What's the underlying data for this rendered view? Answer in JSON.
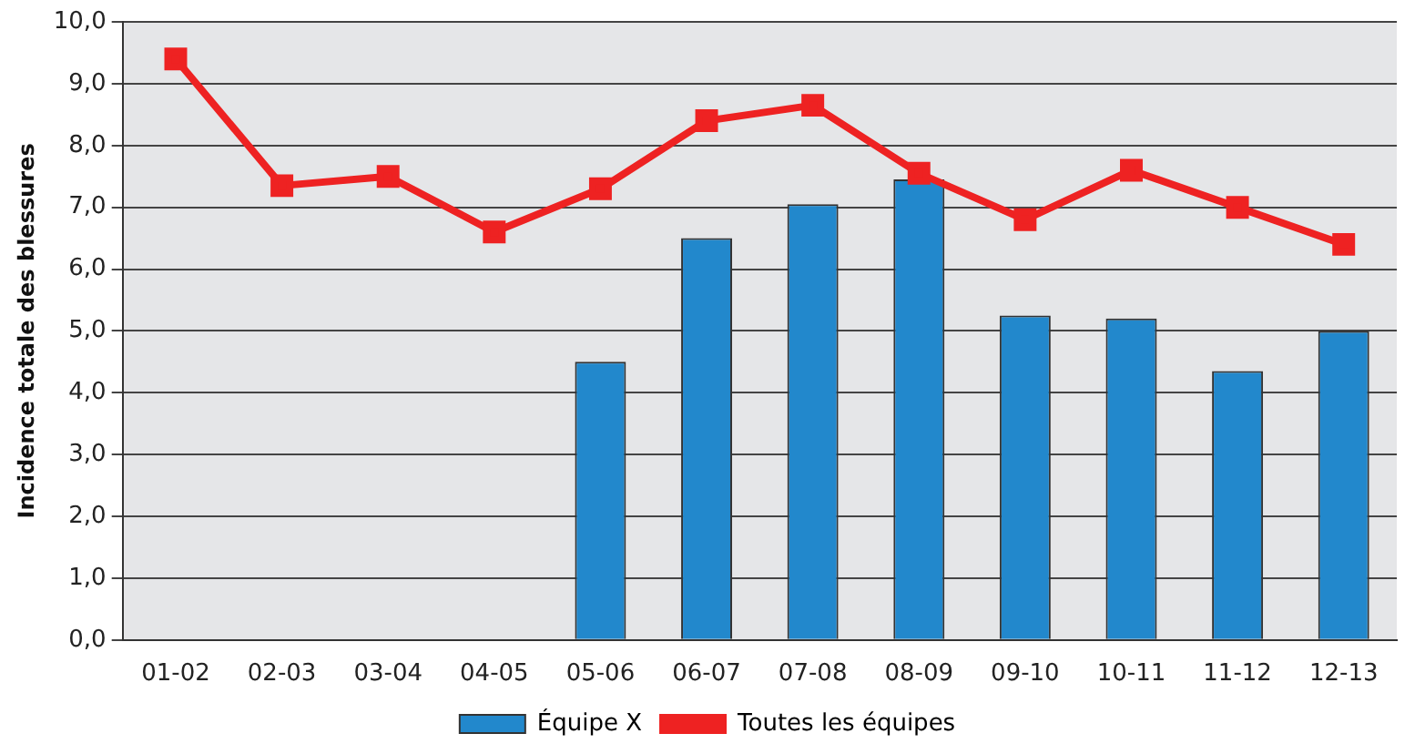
{
  "chart_data": {
    "type": "bar",
    "ylabel": "Incidence totale des blessures",
    "categories": [
      "01-02",
      "02-03",
      "03-04",
      "04-05",
      "05-06",
      "06-07",
      "07-08",
      "08-09",
      "09-10",
      "10-11",
      "11-12",
      "12-13"
    ],
    "series": [
      {
        "name": "Équipe X",
        "color": "#2288cc",
        "values": [
          null,
          null,
          null,
          null,
          4.5,
          6.5,
          7.05,
          7.45,
          5.25,
          5.2,
          4.35,
          5.0
        ]
      },
      {
        "name": "Toutes les équipes",
        "type": "line",
        "color": "#ee2222",
        "values": [
          9.4,
          7.35,
          7.5,
          6.6,
          7.3,
          8.4,
          8.65,
          7.55,
          6.8,
          7.6,
          7.0,
          6.4
        ]
      }
    ],
    "ylim": [
      0,
      10
    ],
    "yticks": [
      {
        "value": 0,
        "label": "0,0"
      },
      {
        "value": 1,
        "label": "1,0"
      },
      {
        "value": 2,
        "label": "2,0"
      },
      {
        "value": 3,
        "label": "3,0"
      },
      {
        "value": 4,
        "label": "4,0"
      },
      {
        "value": 5,
        "label": "5,0"
      },
      {
        "value": 6,
        "label": "6,0"
      },
      {
        "value": 7,
        "label": "7,0"
      },
      {
        "value": 8,
        "label": "8,0"
      },
      {
        "value": 9,
        "label": "9,0"
      },
      {
        "value": 10,
        "label": "10,0"
      }
    ],
    "grid": "y",
    "legend": "bottom",
    "marker": "square",
    "line_style": "solid"
  }
}
